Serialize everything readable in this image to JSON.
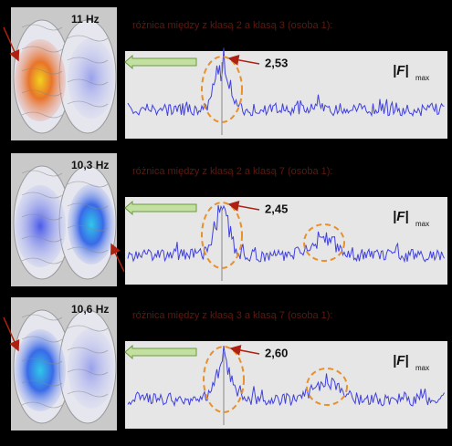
{
  "panels": [
    {
      "freq": "11 Hz",
      "title": "różnica między z klasą 2 a klasą 3 (osoba 1):",
      "peak": "2,53",
      "fmax": "|F|",
      "fmax_sub": "max"
    },
    {
      "freq": "10,3 Hz",
      "title": "różnica między z klasą 2 a klasą 7 (osoba 1):",
      "peak": "2,45",
      "fmax": "|F|",
      "fmax_sub": "max"
    },
    {
      "freq": "10,6 Hz",
      "title": "różnica między z klasą 3 a klasą 7 (osoba 1):",
      "peak": "2,60",
      "fmax": "|F|",
      "fmax_sub": "max"
    }
  ]
}
